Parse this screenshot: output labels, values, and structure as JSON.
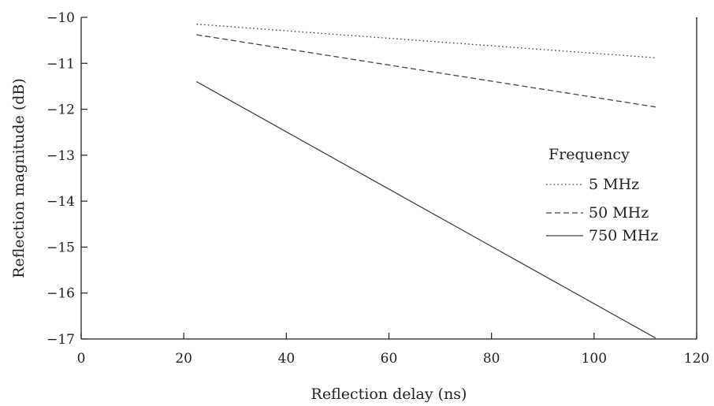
{
  "chart_data": {
    "type": "line",
    "xlabel": "Reflection delay (ns)",
    "ylabel": "Reflection magnitude (dB)",
    "xlim": [
      0,
      120
    ],
    "ylim": [
      -17,
      -10
    ],
    "xticks": [
      "0",
      "20",
      "40",
      "60",
      "80",
      "100",
      "120"
    ],
    "yticks": [
      "−10",
      "−11",
      "−12",
      "−13",
      "−14",
      "−15",
      "−16",
      "−17"
    ],
    "grid": false,
    "legend": {
      "title": "Frequency",
      "placement": "right"
    },
    "series": [
      {
        "name": "5 MHz",
        "style": "dotted",
        "x": [
          22.5,
          112
        ],
        "y": [
          -10.15,
          -10.88
        ]
      },
      {
        "name": "50 MHz",
        "style": "dashed",
        "x": [
          22.5,
          112
        ],
        "y": [
          -10.38,
          -11.95
        ]
      },
      {
        "name": "750 MHz",
        "style": "solid",
        "x": [
          22.5,
          112
        ],
        "y": [
          -11.4,
          -16.98
        ]
      }
    ]
  },
  "colors": {
    "line": "#444444",
    "axis": "#222222",
    "text": "#222222"
  }
}
